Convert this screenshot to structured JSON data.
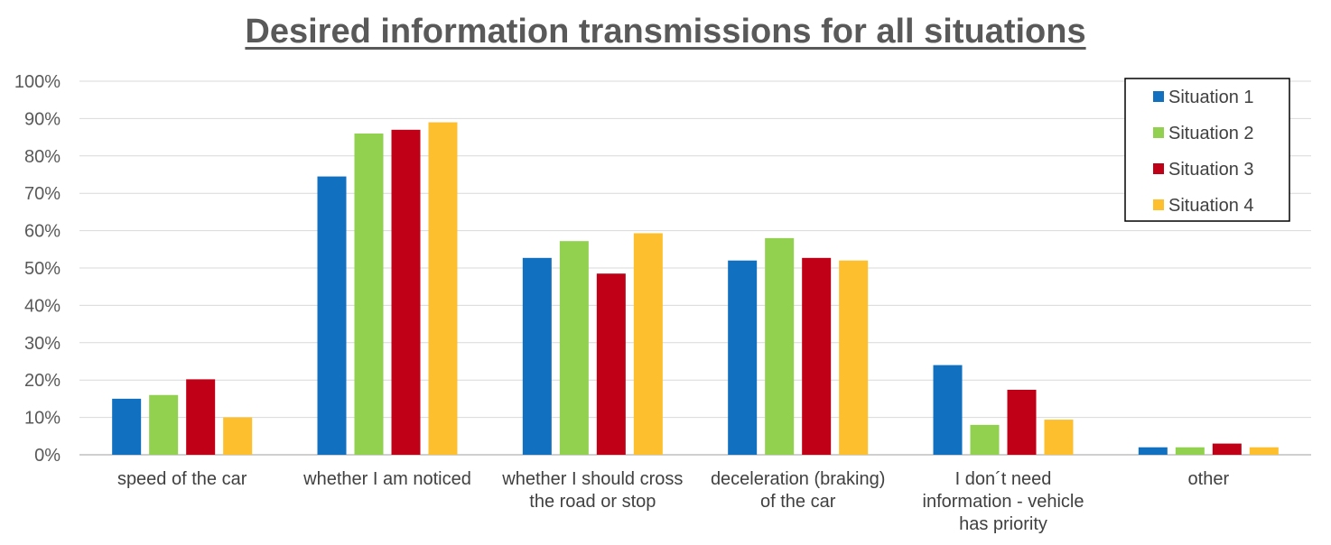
{
  "chart_data": {
    "type": "bar",
    "title": "Desired information transmissions for all situations",
    "xlabel": "",
    "ylabel": "",
    "ylim": [
      0,
      100
    ],
    "yticks": [
      "0%",
      "10%",
      "20%",
      "30%",
      "40%",
      "50%",
      "60%",
      "70%",
      "80%",
      "90%",
      "100%"
    ],
    "grid": true,
    "legend_position": "top-right",
    "categories": [
      [
        "speed of the car"
      ],
      [
        "whether I am noticed"
      ],
      [
        "whether I should cross",
        "the road or stop"
      ],
      [
        "deceleration (braking)",
        "of the car"
      ],
      [
        "I don´t need",
        "information - vehicle",
        "has priority"
      ],
      [
        "other"
      ]
    ],
    "series": [
      {
        "name": "Situation 1",
        "color": "#1170C0",
        "values": [
          15,
          74.5,
          52.7,
          52,
          24,
          2
        ]
      },
      {
        "name": "Situation 2",
        "color": "#92D050",
        "values": [
          16,
          86,
          57.2,
          58,
          8,
          2
        ]
      },
      {
        "name": "Situation 3",
        "color": "#C00016",
        "values": [
          20.2,
          87,
          48.5,
          52.7,
          17.4,
          3
        ]
      },
      {
        "name": "Situation 4",
        "color": "#FDBF2D",
        "values": [
          10,
          89,
          59.3,
          52,
          9.4,
          2
        ]
      }
    ]
  }
}
